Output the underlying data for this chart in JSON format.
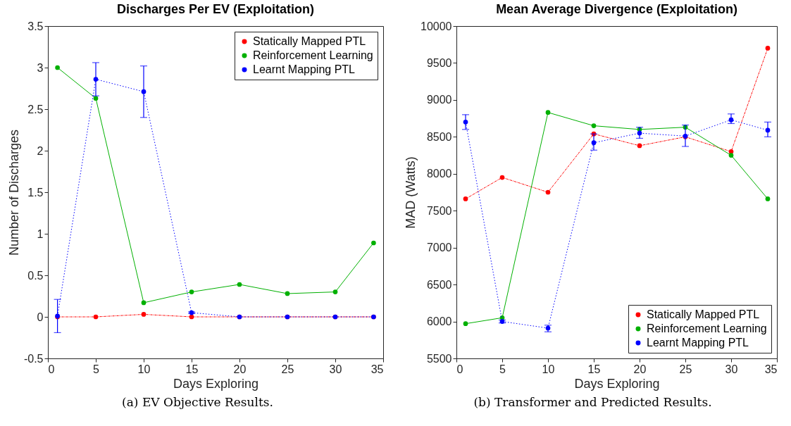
{
  "chart_data": [
    {
      "type": "line",
      "title": "Discharges Per EV (Exploitation)",
      "xlabel": "Days Exploring",
      "ylabel": "Number of Discharges",
      "annotations": [
        "(a) EV Objective Results."
      ],
      "x": [
        1,
        5,
        10,
        15,
        20,
        25,
        30,
        34
      ],
      "xlim": [
        0,
        35
      ],
      "xticks": [
        0,
        5,
        10,
        15,
        20,
        25,
        30,
        35
      ],
      "ylim": [
        -0.5,
        3.5
      ],
      "yticks": [
        -0.5,
        0,
        0.5,
        1,
        1.5,
        2,
        2.5,
        3,
        3.5
      ],
      "legend": "top right",
      "marker": "circle",
      "grid": false,
      "series": [
        {
          "name": "Statically Mapped PTL",
          "color": "#ff0000",
          "line_style": "dashed",
          "values": [
            0,
            0,
            0.03,
            0,
            0,
            0,
            0,
            0
          ]
        },
        {
          "name": "Reinforcement Learning",
          "color": "#00b000",
          "line_style": "solid",
          "values": [
            3,
            2.63,
            0.17,
            0.3,
            0.39,
            0.28,
            0.3,
            0.89
          ]
        },
        {
          "name": "Learnt Mapping PTL",
          "color": "#0000ff",
          "line_style": "dotted",
          "values": [
            0.01,
            2.86,
            2.71,
            0.05,
            0,
            0,
            0,
            0
          ],
          "errors": [
            [
              -0.19,
              0.21
            ],
            [
              2.66,
              3.06
            ],
            [
              2.4,
              3.02
            ],
            [
              0.04,
              0.06
            ],
            null,
            null,
            null,
            null
          ]
        }
      ]
    },
    {
      "type": "line",
      "title": "Mean Average Divergence (Exploitation)",
      "xlabel": "Days Exploring",
      "ylabel": "MAD (Watts)",
      "annotations": [
        "(b) Transformer and Predicted Results."
      ],
      "x": [
        1,
        5,
        10,
        15,
        20,
        25,
        30,
        34
      ],
      "xlim": [
        0,
        35
      ],
      "xticks": [
        0,
        5,
        10,
        15,
        20,
        25,
        30,
        35
      ],
      "ylim": [
        5500,
        10000
      ],
      "yticks": [
        5500,
        6000,
        6500,
        7000,
        7500,
        8000,
        8500,
        9000,
        9500,
        10000
      ],
      "legend": "bottom right",
      "marker": "circle",
      "grid": false,
      "series": [
        {
          "name": "Statically Mapped PTL",
          "color": "#ff0000",
          "line_style": "dashed",
          "values": [
            7660,
            7950,
            7750,
            8540,
            8380,
            8500,
            8300,
            9700
          ]
        },
        {
          "name": "Reinforcement Learning",
          "color": "#00b000",
          "line_style": "solid",
          "values": [
            5970,
            6050,
            8830,
            8650,
            8600,
            8630,
            8250,
            7660
          ]
        },
        {
          "name": "Learnt Mapping PTL",
          "color": "#0000ff",
          "line_style": "dotted",
          "values": [
            8700,
            6000,
            5910,
            8420,
            8550,
            8510,
            8730,
            8590
          ],
          "errors": [
            [
              8600,
              8800
            ],
            [
              5980,
              6020
            ],
            [
              5860,
              5950
            ],
            [
              8320,
              8540
            ],
            [
              8480,
              8630
            ],
            [
              8370,
              8660
            ],
            [
              8680,
              8810
            ],
            [
              8500,
              8700
            ]
          ]
        }
      ]
    }
  ]
}
